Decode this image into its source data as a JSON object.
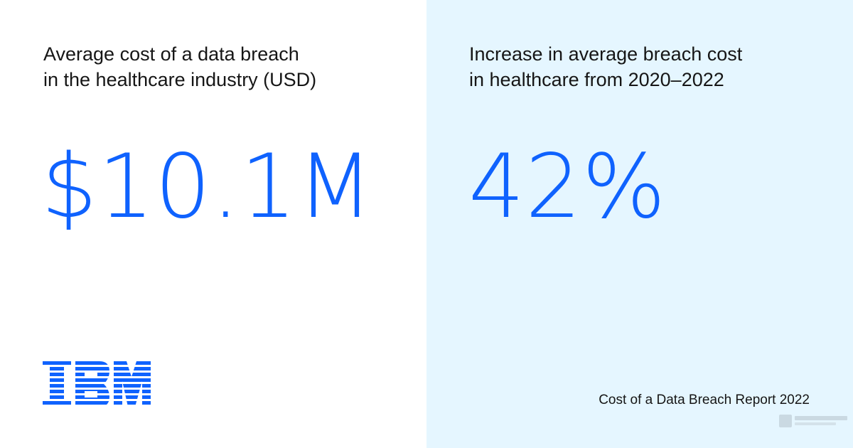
{
  "left": {
    "label_line1": "Average cost of a data breach",
    "label_line2": "in the healthcare industry (USD)",
    "value": "$10.1M"
  },
  "right": {
    "label_line1": "Increase in average breach cost",
    "label_line2": "in healthcare from 2020–2022",
    "value": "42%"
  },
  "brand": {
    "logo_text": "IBM",
    "logo_icon": "ibm-logo-icon"
  },
  "source": "Cost of a Data Breach Report 2022",
  "colors": {
    "accent": "#0f62fe",
    "text": "#161616",
    "right_panel_bg": "#e5f6ff",
    "left_panel_bg": "#ffffff"
  }
}
